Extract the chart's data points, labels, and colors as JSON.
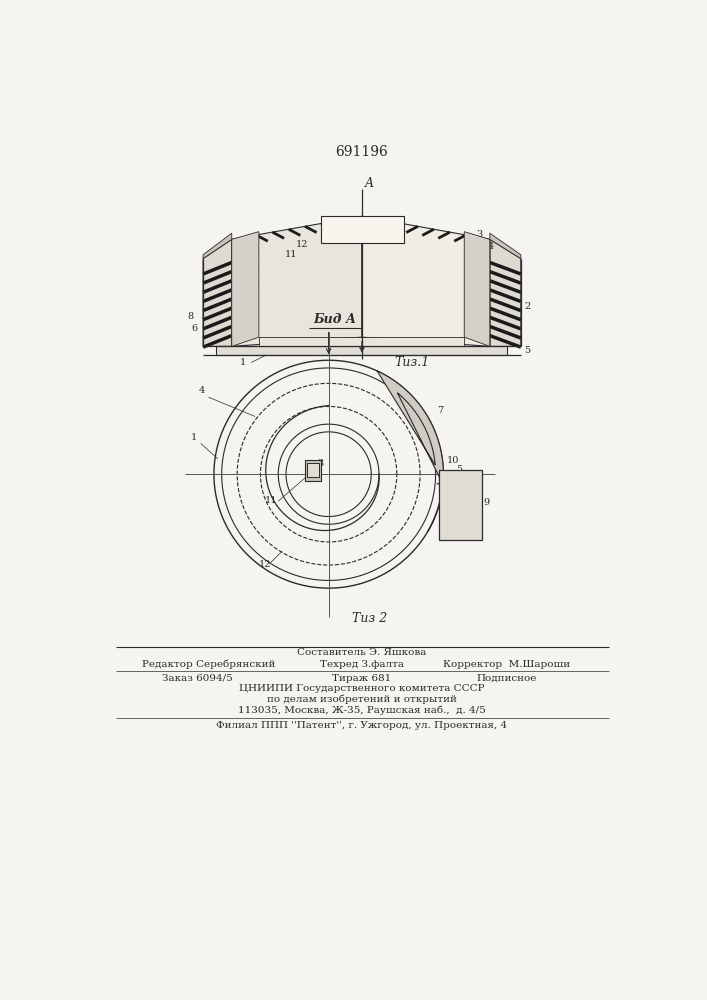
{
  "patent_number": "691196",
  "bg_color": "#f5f4f0",
  "line_color": "#2a2a2a",
  "fig1_caption": "Τиз.1",
  "fig2_caption": "Τиз 2",
  "view_label": "Бид А",
  "footer_line1": "Составитель Э. Яшкова",
  "footer_line2_left": "Редактор Серебрянский",
  "footer_line2_mid": "Техред З.фалта",
  "footer_line2_right": "Корректор  М.Шароши",
  "footer_line3_a": "Заказ 6094/5",
  "footer_line3_b": "Тираж 681",
  "footer_line3_c": "Подписное",
  "footer_line4": "ЦНИИПИ Государственного комитета СССР",
  "footer_line5": "по делам изобретений и открытий",
  "footer_line6": "113035, Москва, Ж-35, Раушская наб.,  д. 4/5",
  "footer_line7": "Филиал ППП ''Патент'', г. Ужгород, ул. Проектная, 4"
}
